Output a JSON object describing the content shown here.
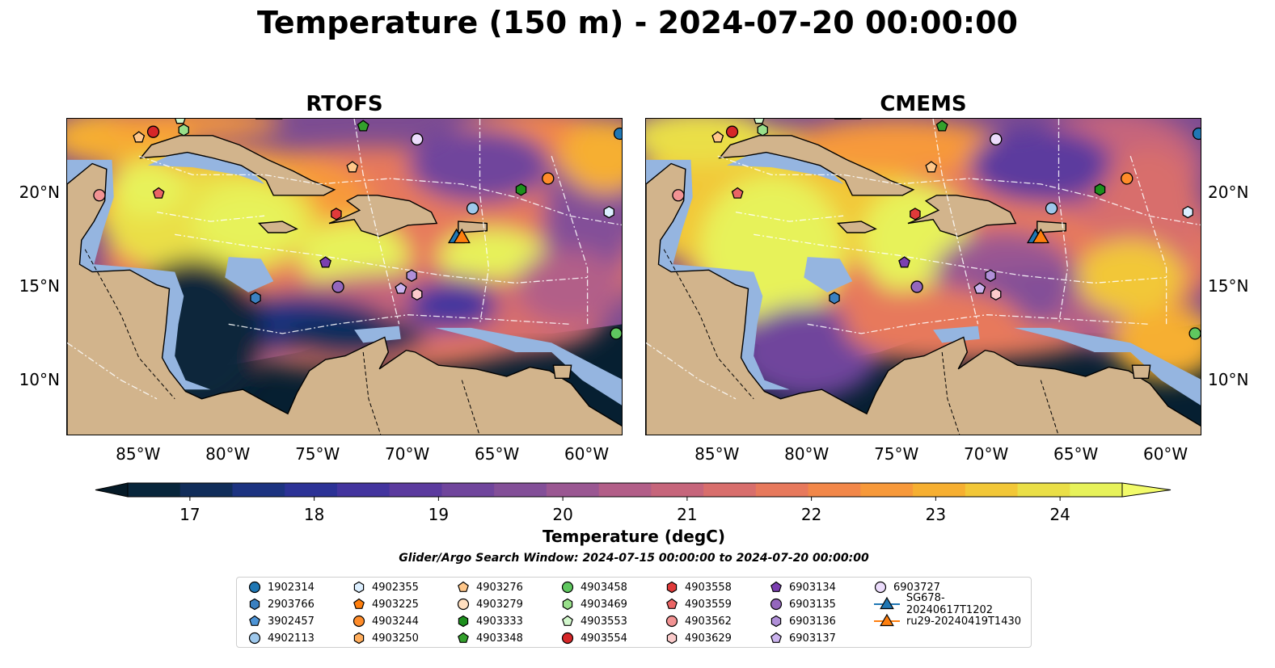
{
  "title": "Temperature (150 m) - 2024-07-20 00:00:00",
  "panels": [
    {
      "title": "RTOFS"
    },
    {
      "title": "CMEMS"
    }
  ],
  "map": {
    "lon_range": [
      -89,
      -58
    ],
    "lat_range": [
      7,
      24
    ],
    "lon_ticks": [
      "85°W",
      "80°W",
      "75°W",
      "70°W",
      "65°W",
      "60°W"
    ],
    "lat_ticks": [
      "20°N",
      "15°N",
      "10°N"
    ],
    "land_color": "#d2b48c",
    "shelf_color": "#95b5e0",
    "cold_water_color": "#061f31"
  },
  "colorbar": {
    "label": "Temperature (degC)",
    "ticks": [
      "17",
      "18",
      "19",
      "20",
      "21",
      "22",
      "23",
      "24"
    ],
    "range": [
      16.5,
      24.5
    ],
    "colors": [
      "#08263b",
      "#112d5a",
      "#1c3380",
      "#2c3296",
      "#43349e",
      "#5b3a9e",
      "#70459c",
      "#834f98",
      "#9a5792",
      "#b25e88",
      "#c6657b",
      "#d86e6c",
      "#e7795c",
      "#f28749",
      "#f7993a",
      "#f6af31",
      "#f2c737",
      "#eadf47",
      "#e7f25a"
    ]
  },
  "search_window": "Glider/Argo Search Window: 2024-07-15 00:00:00 to 2024-07-20 00:00:00",
  "legend": [
    {
      "label": "1902314",
      "shape": "circle",
      "color": "#1f77b4"
    },
    {
      "label": "2903766",
      "shape": "hexagon",
      "color": "#3b80c0"
    },
    {
      "label": "3902457",
      "shape": "pentagon",
      "color": "#4d94d6"
    },
    {
      "label": "4902113",
      "shape": "circle",
      "color": "#9ec8ec"
    },
    {
      "label": "4902355",
      "shape": "hexagon",
      "color": "#dcefff"
    },
    {
      "label": "4903225",
      "shape": "pentagon",
      "color": "#ff7f0e"
    },
    {
      "label": "4903244",
      "shape": "circle",
      "color": "#ff8c2a"
    },
    {
      "label": "4903250",
      "shape": "hexagon",
      "color": "#ffad5c"
    },
    {
      "label": "4903276",
      "shape": "pentagon",
      "color": "#ffc78a"
    },
    {
      "label": "4903279",
      "shape": "circle",
      "color": "#ffdfc0"
    },
    {
      "label": "4903333",
      "shape": "hexagon",
      "color": "#1d8f1d"
    },
    {
      "label": "4903348",
      "shape": "pentagon",
      "color": "#33a02c"
    },
    {
      "label": "4903458",
      "shape": "circle",
      "color": "#5fc75f"
    },
    {
      "label": "4903469",
      "shape": "hexagon",
      "color": "#98df8a"
    },
    {
      "label": "4903553",
      "shape": "pentagon",
      "color": "#d2f7cc"
    },
    {
      "label": "4903554",
      "shape": "circle",
      "color": "#d62728"
    },
    {
      "label": "4903558",
      "shape": "hexagon",
      "color": "#e03a3a"
    },
    {
      "label": "4903559",
      "shape": "pentagon",
      "color": "#eb6565"
    },
    {
      "label": "4903562",
      "shape": "circle",
      "color": "#f29393"
    },
    {
      "label": "4903629",
      "shape": "hexagon",
      "color": "#fbcbcb"
    },
    {
      "label": "6903134",
      "shape": "pentagon",
      "color": "#7b3fb0"
    },
    {
      "label": "6903135",
      "shape": "circle",
      "color": "#9467bd"
    },
    {
      "label": "6903136",
      "shape": "hexagon",
      "color": "#b08fd8"
    },
    {
      "label": "6903137",
      "shape": "pentagon",
      "color": "#cbb3ee"
    },
    {
      "label": "6903727",
      "shape": "circle",
      "color": "#ecdcfc"
    },
    {
      "label": "SG678-20240617T1202",
      "shape": "triangle-line",
      "color": "#1f77b4"
    },
    {
      "label": "ru29-20240419T1430",
      "shape": "triangle-line",
      "color": "#ff7f0e"
    }
  ],
  "markers": [
    {
      "lon": -85.0,
      "lat": 23.0,
      "shape": "pentagon",
      "color": "#ffc78a"
    },
    {
      "lon": -84.2,
      "lat": 23.3,
      "shape": "circle",
      "color": "#d62728"
    },
    {
      "lon": -82.5,
      "lat": 23.4,
      "shape": "hexagon",
      "color": "#98df8a"
    },
    {
      "lon": -82.7,
      "lat": 24.0,
      "shape": "pentagon",
      "color": "#d2f7cc"
    },
    {
      "lon": -72.5,
      "lat": 23.6,
      "shape": "pentagon",
      "color": "#33a02c"
    },
    {
      "lon": -69.5,
      "lat": 22.9,
      "shape": "circle",
      "color": "#ecdcfc"
    },
    {
      "lon": -58.2,
      "lat": 23.2,
      "shape": "circle",
      "color": "#1f77b4"
    },
    {
      "lon": -73.1,
      "lat": 21.4,
      "shape": "pentagon",
      "color": "#ffc78a"
    },
    {
      "lon": -62.2,
      "lat": 20.8,
      "shape": "circle",
      "color": "#ff8c2a"
    },
    {
      "lon": -63.7,
      "lat": 20.2,
      "shape": "hexagon",
      "color": "#1d8f1d"
    },
    {
      "lon": -87.2,
      "lat": 19.9,
      "shape": "circle",
      "color": "#f29393"
    },
    {
      "lon": -83.9,
      "lat": 20.0,
      "shape": "pentagon",
      "color": "#eb6565"
    },
    {
      "lon": -74.0,
      "lat": 18.9,
      "shape": "hexagon",
      "color": "#e03a3a"
    },
    {
      "lon": -66.4,
      "lat": 19.2,
      "shape": "circle",
      "color": "#9ec8ec"
    },
    {
      "lon": -58.8,
      "lat": 19.0,
      "shape": "hexagon",
      "color": "#dcefff"
    },
    {
      "lon": -74.6,
      "lat": 16.3,
      "shape": "pentagon",
      "color": "#7b3fb0"
    },
    {
      "lon": -73.9,
      "lat": 15.0,
      "shape": "circle",
      "color": "#9467bd"
    },
    {
      "lon": -69.8,
      "lat": 15.6,
      "shape": "hexagon",
      "color": "#b08fd8"
    },
    {
      "lon": -70.4,
      "lat": 14.9,
      "shape": "pentagon",
      "color": "#cbb3ee"
    },
    {
      "lon": -69.5,
      "lat": 14.6,
      "shape": "hexagon",
      "color": "#fbcbcb"
    },
    {
      "lon": -78.5,
      "lat": 14.4,
      "shape": "hexagon",
      "color": "#3b80c0"
    },
    {
      "lon": -58.4,
      "lat": 12.5,
      "shape": "circle",
      "color": "#5fc75f"
    },
    {
      "lon": -67.3,
      "lat": 17.6,
      "shape": "triangle",
      "color": "#1f77b4"
    },
    {
      "lon": -67.0,
      "lat": 17.6,
      "shape": "triangle",
      "color": "#ff7f0e"
    }
  ]
}
